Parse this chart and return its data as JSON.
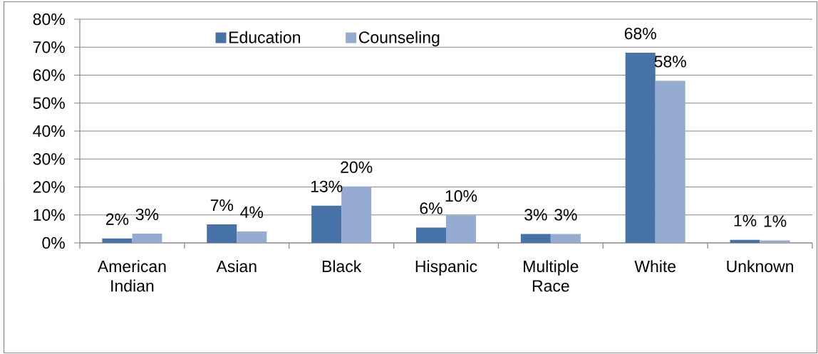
{
  "chart_data": {
    "type": "bar",
    "categories": [
      "American Indian",
      "Asian",
      "Black",
      "Hispanic",
      "Multiple Race",
      "White",
      "Unknown"
    ],
    "series": [
      {
        "name": "Education",
        "color": "#4672a7",
        "values": [
          1.6,
          6.6,
          13.3,
          5.5,
          3.2,
          68.0,
          1.1
        ],
        "value_labels": [
          "2%",
          "7%",
          "13%",
          "6%",
          "3%",
          "68%",
          "1%"
        ]
      },
      {
        "name": "Counseling",
        "color": "#95abd2",
        "values": [
          3.3,
          4.1,
          20.2,
          9.9,
          3.2,
          58.0,
          0.9
        ],
        "value_labels": [
          "3%",
          "4%",
          "20%",
          "10%",
          "3%",
          "58%",
          "1%"
        ]
      }
    ],
    "ylim": [
      0,
      80
    ],
    "yticks": [
      {
        "value": 0,
        "label": "0%"
      },
      {
        "value": 10,
        "label": "10%"
      },
      {
        "value": 20,
        "label": "20%"
      },
      {
        "value": 30,
        "label": "30%"
      },
      {
        "value": 40,
        "label": "40%"
      },
      {
        "value": 50,
        "label": "50%"
      },
      {
        "value": 60,
        "label": "60%"
      },
      {
        "value": 70,
        "label": "70%"
      },
      {
        "value": 80,
        "label": "80%"
      }
    ],
    "grid": "y",
    "legend": "top"
  }
}
